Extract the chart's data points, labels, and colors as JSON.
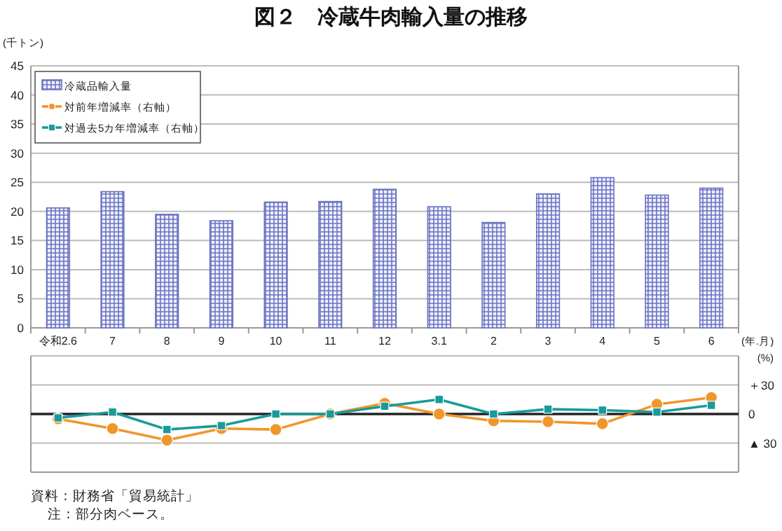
{
  "chart_data": [
    {
      "type": "bar",
      "title": "図２　冷蔵牛肉輸入量の推移",
      "ylabel": "(千トン)",
      "xlabel": "(年.月)",
      "categories": [
        "令和2.6",
        "7",
        "8",
        "9",
        "10",
        "11",
        "12",
        "3.1",
        "2",
        "3",
        "4",
        "5",
        "6"
      ],
      "series": [
        {
          "name": "冷蔵品輸入量",
          "color": "#6a72c0",
          "values": [
            20.6,
            23.4,
            19.5,
            18.4,
            21.6,
            21.7,
            23.8,
            20.8,
            18.1,
            23.0,
            25.8,
            22.8,
            24.0
          ]
        }
      ],
      "ylim": [
        0,
        45
      ],
      "yticks": [
        0,
        5,
        10,
        15,
        20,
        25,
        30,
        35,
        40,
        45
      ],
      "grid": "y",
      "legend": "top left"
    },
    {
      "type": "line",
      "ylabel": "(%)",
      "categories": [
        null,
        null,
        null,
        null,
        null,
        null,
        null,
        null,
        null,
        null,
        null,
        null,
        null
      ],
      "series": [
        {
          "name": "対前年増減率（右軸）",
          "color": "#f0962a",
          "marker": "circle",
          "values": [
            -5,
            -15,
            -27,
            -15,
            -16,
            0,
            11,
            0,
            -7,
            -8,
            -10,
            10,
            17
          ]
        },
        {
          "name": "対過去5カ年増減率（右軸）",
          "color": "#1a9a9a",
          "marker": "square",
          "values": [
            -4,
            2,
            -16,
            -12,
            0,
            0,
            8,
            15,
            0,
            5,
            4,
            2,
            9
          ]
        }
      ],
      "ylim": [
        -60,
        60
      ],
      "yticks": [
        {
          "value": -60,
          "label": null
        },
        {
          "value": -30,
          "label": "▲ 30"
        },
        0,
        {
          "value": 30,
          "label": "＋30"
        },
        {
          "value": 60,
          "label": null
        }
      ],
      "tick_labels": "y",
      "grid": "y",
      "legend": "top left",
      "ref_lines": [
        {
          "axis": "y",
          "value": 0,
          "color": "#222222"
        }
      ],
      "annotations": [
        "資料：財務省「貿易統計」",
        "注：部分肉ベース。"
      ]
    }
  ]
}
